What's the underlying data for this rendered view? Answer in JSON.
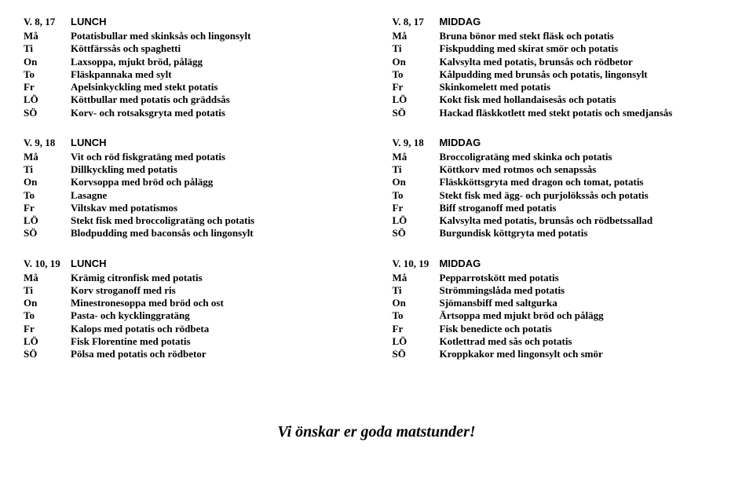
{
  "footer": "Vi önskar er goda matstunder!",
  "days": [
    "Må",
    "Ti",
    "On",
    "To",
    "Fr",
    "LÖ",
    "SÖ"
  ],
  "menus": [
    {
      "left": {
        "week": "V. 8, 17",
        "title": "LUNCH",
        "dishes": [
          "Potatisbullar med skinksås och lingonsylt",
          "Köttfärssås och spaghetti",
          "Laxsoppa, mjukt bröd, pålägg",
          "Fläskpannaka med sylt",
          "Apelsinkyckling med stekt potatis",
          "Köttbullar med potatis och gräddsås",
          "Korv- och rotsaksgryta med potatis"
        ]
      },
      "right": {
        "week": "V. 8, 17",
        "title": "MIDDAG",
        "dishes": [
          "Bruna bönor med stekt fläsk och potatis",
          "Fiskpudding med skirat smör och potatis",
          "Kalvsylta med potatis, brunsås och rödbetor",
          "Kålpudding med brunsås och potatis, lingonsylt",
          "Skinkomelett med potatis",
          "Kokt fisk med hollandaisesås och potatis",
          "Hackad fläskkotlett med stekt potatis och smedjansås"
        ]
      }
    },
    {
      "left": {
        "week": "V. 9, 18",
        "title": "LUNCH",
        "dishes": [
          "Vit och röd fiskgratäng med potatis",
          "Dillkyckling med potatis",
          "Korvsoppa med bröd och pålägg",
          "Lasagne",
          "Viltskav med potatismos",
          "Stekt fisk med broccoligratäng och potatis",
          "Blodpudding med baconsås och lingonsylt"
        ]
      },
      "right": {
        "week": "V. 9, 18",
        "title": "MIDDAG",
        "dishes": [
          "Broccoligratäng med skinka och potatis",
          "Köttkorv med rotmos och senapssås",
          "Fläskköttsgryta med dragon och tomat, potatis",
          "Stekt fisk med ägg- och purjolökssås och potatis",
          "Biff stroganoff med potatis",
          "Kalvsylta med potatis, brunsås och rödbetssallad",
          "Burgundisk köttgryta med potatis"
        ]
      }
    },
    {
      "left": {
        "week": "V. 10, 19",
        "title": "LUNCH",
        "dishes": [
          "Krämig citronfisk med potatis",
          "Korv stroganoff med ris",
          "Minestronesoppa med bröd och ost",
          "Pasta- och kycklinggratäng",
          "Kalops med potatis och rödbeta",
          "Fisk Florentine med potatis",
          "Pölsa med potatis och rödbetor"
        ]
      },
      "right": {
        "week": "V. 10, 19",
        "title": "MIDDAG",
        "dishes": [
          "Pepparrotskött med potatis",
          "Strömmingslåda med potatis",
          "Sjömansbiff med saltgurka",
          "Ärtsoppa med mjukt bröd och pålägg",
          "Fisk benedicte och potatis",
          "Kotlettrad med sås och potatis",
          "Kroppkakor med lingonsylt och smör"
        ]
      }
    }
  ]
}
